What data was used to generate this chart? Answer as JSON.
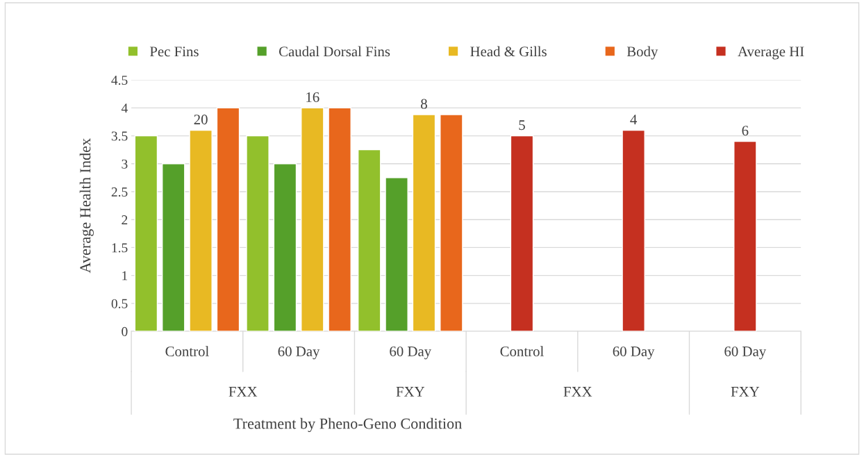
{
  "chart_data": {
    "type": "bar",
    "xlabel": "Treatment by Pheno-Geno Condition",
    "ylabel": "Average Health Index",
    "categories": [
      "Control",
      "60 Day",
      "60 Day",
      "Control",
      "60 Day",
      "60 Day"
    ],
    "series": [
      {
        "name": "Pec Fins",
        "color": "#92c02c",
        "values": [
          3.5,
          3.5,
          3.25,
          null,
          null,
          null
        ]
      },
      {
        "name": "Caudal Dorsal Fins",
        "color": "#55a02a",
        "values": [
          3.0,
          3.0,
          2.75,
          null,
          null,
          null
        ]
      },
      {
        "name": "Head & Gills",
        "color": "#e8b923",
        "values": [
          3.6,
          4.0,
          3.88,
          null,
          null,
          null
        ]
      },
      {
        "name": "Body",
        "color": "#e8671c",
        "values": [
          4.0,
          4.0,
          3.88,
          null,
          null,
          null
        ]
      },
      {
        "name": "Average HI",
        "color": "#c53020",
        "values": [
          null,
          null,
          null,
          3.5,
          3.6,
          3.4
        ]
      }
    ],
    "annotations": [
      "FXX",
      "FXY",
      "FXX",
      "FXY",
      "20",
      "16",
      "8",
      "5",
      "4",
      "6"
    ],
    "ylim": [
      0,
      4.5
    ],
    "yticks": [
      0,
      0.5,
      1,
      1.5,
      2,
      2.5,
      3,
      3.5,
      4,
      4.5
    ],
    "grid": "y",
    "legend": "top"
  }
}
